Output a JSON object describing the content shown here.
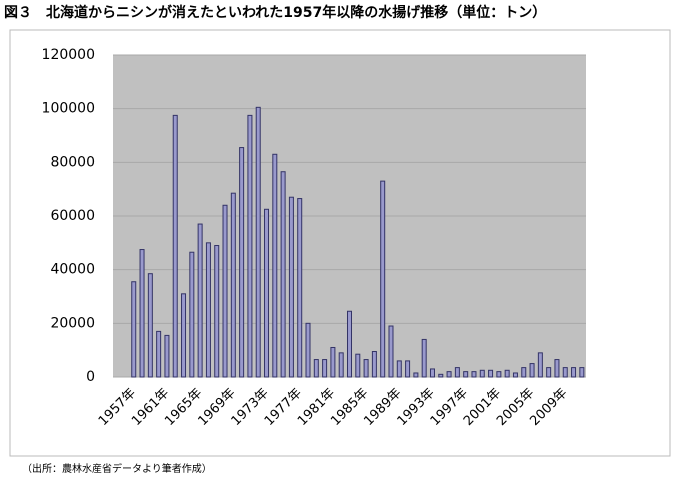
{
  "chart_data": {
    "type": "bar",
    "title": "図３　北海道からニシンが消えたといわれた1957年以降の水揚げ推移（単位：トン）",
    "source": "（出所：農林水産省データより筆者作成）",
    "categories": [
      null,
      null,
      "1957年",
      null,
      null,
      null,
      "1961年",
      null,
      null,
      null,
      "1965年",
      null,
      null,
      null,
      "1969年",
      null,
      null,
      null,
      "1973年",
      null,
      null,
      null,
      "1977年",
      null,
      null,
      null,
      "1981年",
      null,
      null,
      null,
      "1985年",
      null,
      null,
      null,
      "1989年",
      null,
      null,
      null,
      "1993年",
      null,
      null,
      null,
      "1997年",
      null,
      null,
      null,
      "2001年",
      null,
      null,
      null,
      "2005年",
      null,
      null,
      null,
      "2009年",
      null,
      null
    ],
    "values": [
      0,
      0,
      35500,
      47500,
      38500,
      17000,
      15500,
      97500,
      31000,
      46500,
      57000,
      50000,
      49000,
      64000,
      68500,
      85500,
      97500,
      100500,
      62500,
      83000,
      76500,
      67000,
      66500,
      20000,
      6500,
      6500,
      11000,
      9000,
      24500,
      8500,
      6500,
      9500,
      73000,
      19000,
      6000,
      6000,
      1500,
      14000,
      3000,
      1000,
      2000,
      3500,
      2000,
      2000,
      2500,
      2500,
      2000,
      2500,
      1500,
      3500,
      5000,
      9000,
      3500,
      6500,
      3500,
      3500,
      3500
    ],
    "color": "#9999cc",
    "ylim": [
      0,
      120000
    ],
    "yticks": [
      0,
      20000,
      40000,
      60000,
      80000,
      100000,
      120000
    ],
    "grid": true
  }
}
